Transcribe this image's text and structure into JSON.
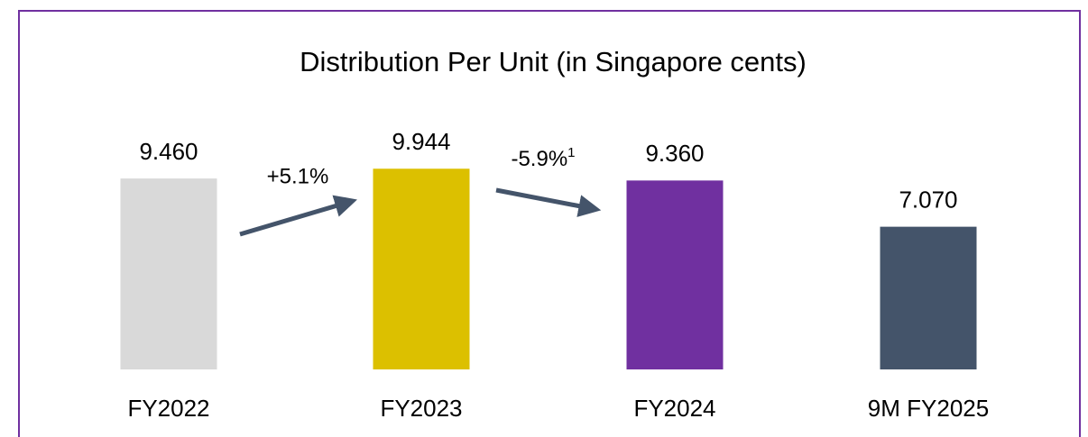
{
  "chart_data": {
    "type": "bar",
    "title": "Distribution Per Unit (in Singapore cents)",
    "categories": [
      "FY2022",
      "FY2023",
      "FY2024",
      "9M FY2025"
    ],
    "values": [
      9.46,
      9.944,
      9.36,
      7.07
    ],
    "value_labels": [
      "9.460",
      "9.944",
      "9.360",
      "7.070"
    ],
    "colors": [
      "#d9d9d9",
      "#dcc000",
      "#7030a0",
      "#44546a"
    ],
    "annotations": [
      {
        "text": "+5.1%"
      },
      {
        "text": "-5.9%",
        "superscript": "1"
      }
    ]
  }
}
